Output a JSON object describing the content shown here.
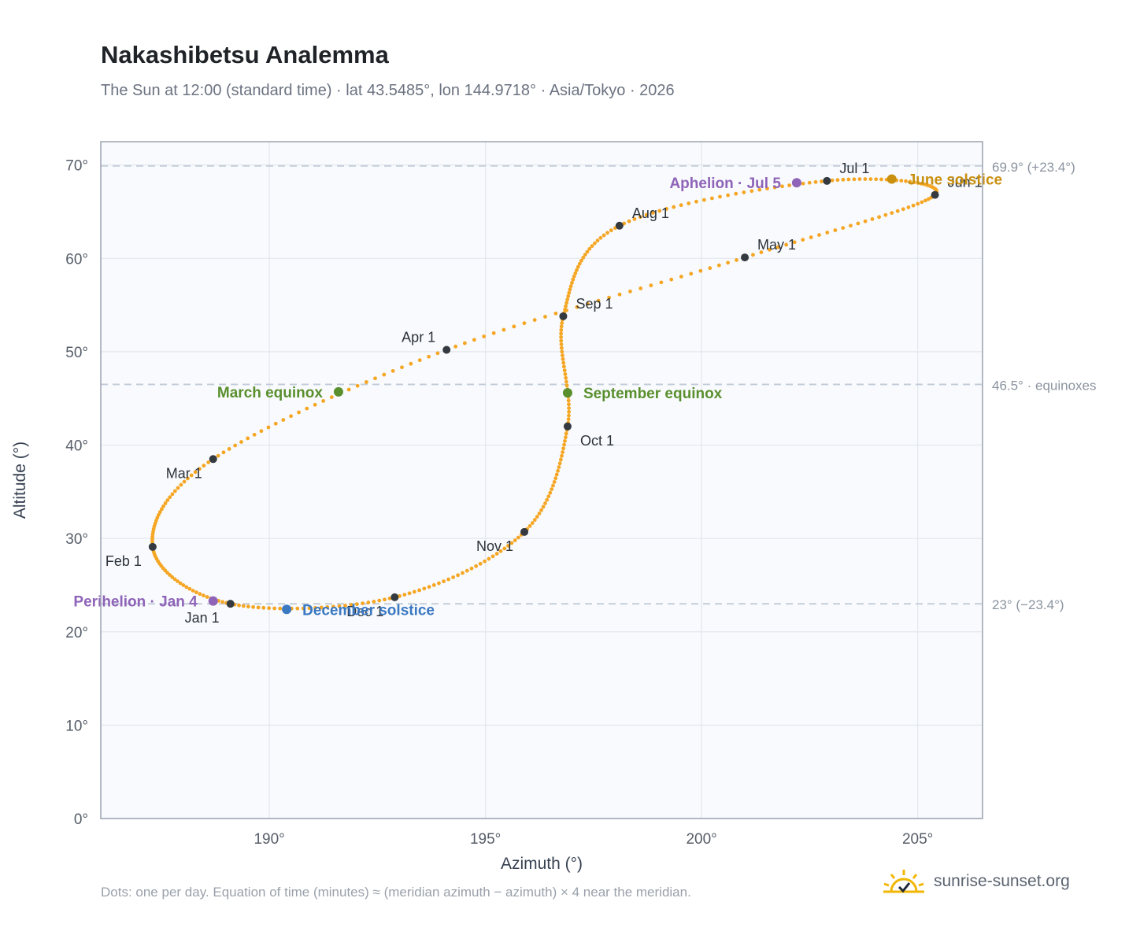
{
  "header": {
    "title": "Nakashibetsu Analemma",
    "subtitle": "The Sun at 12:00 (standard time) · lat 43.5485°, lon 144.9718° · Asia/Tokyo · 2026"
  },
  "footer": {
    "note": "Dots: one per day. Equation of time (minutes) ≈ (meridian azimuth − azimuth) × 4 near the meridian.",
    "brand": "sunrise-sunset.org"
  },
  "colors": {
    "curve": "#f5a623",
    "month_marker": "#343a40",
    "equinox": "#5a8f2e",
    "june_solstice": "#c9900f",
    "december_solstice": "#3a78c2",
    "apsis": "#8e63b8",
    "reference_line": "#c2ccd8",
    "plot_bg": "#f8fafd",
    "frame": "#9aa3b0"
  },
  "chart_data": {
    "type": "scatter",
    "xlabel": "Azimuth (°)",
    "ylabel": "Altitude (°)",
    "xlim": [
      186.1,
      206.5
    ],
    "ylim": [
      0,
      72.5
    ],
    "x_ticks": [
      "190°",
      "195°",
      "200°",
      "205°"
    ],
    "x_tick_values": [
      190,
      195,
      200,
      205
    ],
    "y_ticks": [
      "0°",
      "10°",
      "20°",
      "30°",
      "40°",
      "50°",
      "60°",
      "70°"
    ],
    "y_tick_values": [
      0,
      10,
      20,
      30,
      40,
      50,
      60,
      70
    ],
    "grid": true,
    "reference_lines": [
      {
        "y": 69.9,
        "label": "69.9° (+23.4°)"
      },
      {
        "y": 46.5,
        "label": "46.5° · equinoxes"
      },
      {
        "y": 23.0,
        "label": "23° (−23.4°)"
      }
    ],
    "month_markers": [
      {
        "label": "Jan 1",
        "az": 189.1,
        "alt": 23.0,
        "label_pos": "below-left"
      },
      {
        "label": "Feb 1",
        "az": 187.3,
        "alt": 29.1,
        "label_pos": "below-left"
      },
      {
        "label": "Mar 1",
        "az": 188.7,
        "alt": 38.5,
        "label_pos": "below-left"
      },
      {
        "label": "Apr 1",
        "az": 194.1,
        "alt": 50.2,
        "label_pos": "above-left"
      },
      {
        "label": "May 1",
        "az": 201.0,
        "alt": 60.1,
        "label_pos": "above-right"
      },
      {
        "label": "Jun 1",
        "az": 205.4,
        "alt": 66.8,
        "label_pos": "above-right"
      },
      {
        "label": "Jul 1",
        "az": 202.9,
        "alt": 68.3,
        "label_pos": "above-right"
      },
      {
        "label": "Aug 1",
        "az": 198.1,
        "alt": 63.5,
        "label_pos": "above-right"
      },
      {
        "label": "Sep 1",
        "az": 196.8,
        "alt": 53.8,
        "label_pos": "above-right"
      },
      {
        "label": "Oct 1",
        "az": 196.9,
        "alt": 42.0,
        "label_pos": "below-right"
      },
      {
        "label": "Nov 1",
        "az": 195.9,
        "alt": 30.7,
        "label_pos": "below-left"
      },
      {
        "label": "Dec 1",
        "az": 192.9,
        "alt": 23.7,
        "label_pos": "below-left"
      }
    ],
    "events": [
      {
        "label": "March equinox",
        "az": 191.6,
        "alt": 45.7,
        "color_key": "equinox",
        "label_pos": "left"
      },
      {
        "label": "September equinox",
        "az": 196.9,
        "alt": 45.6,
        "color_key": "equinox",
        "label_pos": "right"
      },
      {
        "label": "June solstice",
        "az": 204.4,
        "alt": 68.5,
        "color_key": "june_solstice",
        "label_pos": "right"
      },
      {
        "label": "December solstice",
        "az": 190.4,
        "alt": 22.4,
        "color_key": "december_solstice",
        "label_pos": "right"
      },
      {
        "label": "Perihelion · Jan 4",
        "az": 188.7,
        "alt": 23.3,
        "color_key": "apsis",
        "label_pos": "left"
      },
      {
        "label": "Aphelion · Jul 5",
        "az": 202.2,
        "alt": 68.1,
        "color_key": "apsis",
        "label_pos": "left"
      }
    ]
  }
}
